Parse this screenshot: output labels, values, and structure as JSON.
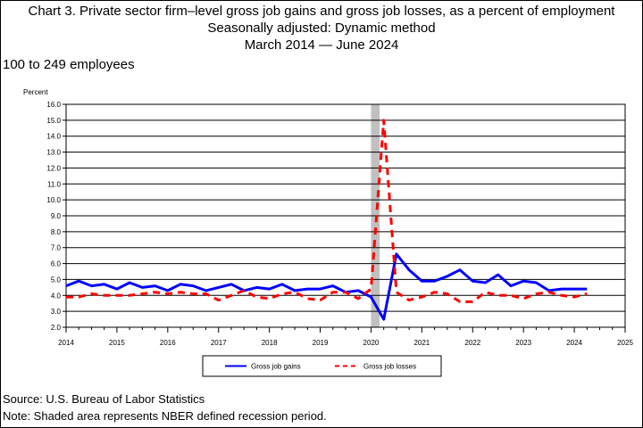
{
  "header": {
    "title_line1": "Chart 3. Private sector firm–level gross job gains and gross job losses, as a percent of employment",
    "title_line2": "Seasonally adjusted: Dynamic method",
    "title_line3": "March 2014  — June 2024",
    "subtitle": "100 to 249 employees",
    "ylabel": "Percent"
  },
  "footer": {
    "source": "Source: U.S. Bureau of Labor Statistics",
    "note": "Note: Shaded area represents NBER defined recession period."
  },
  "chart_data": {
    "type": "line",
    "title": "Chart 3. Private sector firm–level gross job gains and gross job losses, as a percent of employment",
    "ylabel": "Percent",
    "xlim": [
      2014,
      2025
    ],
    "ylim": [
      2.0,
      16.0
    ],
    "yticks": [
      "2.0",
      "3.0",
      "4.0",
      "5.0",
      "6.0",
      "7.0",
      "8.0",
      "9.0",
      "10.0",
      "11.0",
      "12.0",
      "13.0",
      "14.0",
      "15.0",
      "16.0"
    ],
    "xticks": [
      "2014",
      "2015",
      "2016",
      "2017",
      "2018",
      "2019",
      "2020",
      "2021",
      "2022",
      "2023",
      "2024",
      "2025"
    ],
    "grid": "horizontal",
    "legend": "bottom-center",
    "recession": [
      2020.0,
      2020.17
    ],
    "x": [
      2014.0,
      2014.25,
      2014.5,
      2014.75,
      2015.0,
      2015.25,
      2015.5,
      2015.75,
      2016.0,
      2016.25,
      2016.5,
      2016.75,
      2017.0,
      2017.25,
      2017.5,
      2017.75,
      2018.0,
      2018.25,
      2018.5,
      2018.75,
      2019.0,
      2019.25,
      2019.5,
      2019.75,
      2020.0,
      2020.25,
      2020.5,
      2020.75,
      2021.0,
      2021.25,
      2021.5,
      2021.75,
      2022.0,
      2022.25,
      2022.5,
      2022.75,
      2023.0,
      2023.25,
      2023.5,
      2023.75,
      2024.0,
      2024.25
    ],
    "series": [
      {
        "name": "Gross job gains",
        "color": "#0000ff",
        "dash": "solid",
        "values": [
          4.6,
          4.9,
          4.6,
          4.7,
          4.4,
          4.8,
          4.5,
          4.6,
          4.3,
          4.7,
          4.6,
          4.3,
          4.5,
          4.7,
          4.3,
          4.5,
          4.4,
          4.7,
          4.3,
          4.4,
          4.4,
          4.6,
          4.2,
          4.3,
          3.9,
          2.5,
          6.6,
          5.6,
          4.9,
          4.9,
          5.2,
          5.6,
          4.9,
          4.8,
          5.3,
          4.6,
          4.9,
          4.8,
          4.3,
          4.4,
          4.4,
          4.4
        ]
      },
      {
        "name": "Gross job losses",
        "color": "#ff0000",
        "dash": "dashed",
        "values": [
          3.9,
          3.9,
          4.1,
          4.0,
          4.0,
          4.0,
          4.1,
          4.2,
          4.1,
          4.2,
          4.1,
          4.1,
          3.7,
          4.0,
          4.3,
          3.9,
          3.8,
          4.1,
          4.2,
          3.8,
          3.7,
          4.2,
          4.2,
          3.8,
          4.4,
          15.0,
          4.2,
          3.7,
          3.9,
          4.2,
          4.1,
          3.6,
          3.6,
          4.2,
          4.0,
          4.0,
          3.8,
          4.1,
          4.2,
          4.0,
          3.9,
          4.1
        ]
      }
    ]
  }
}
